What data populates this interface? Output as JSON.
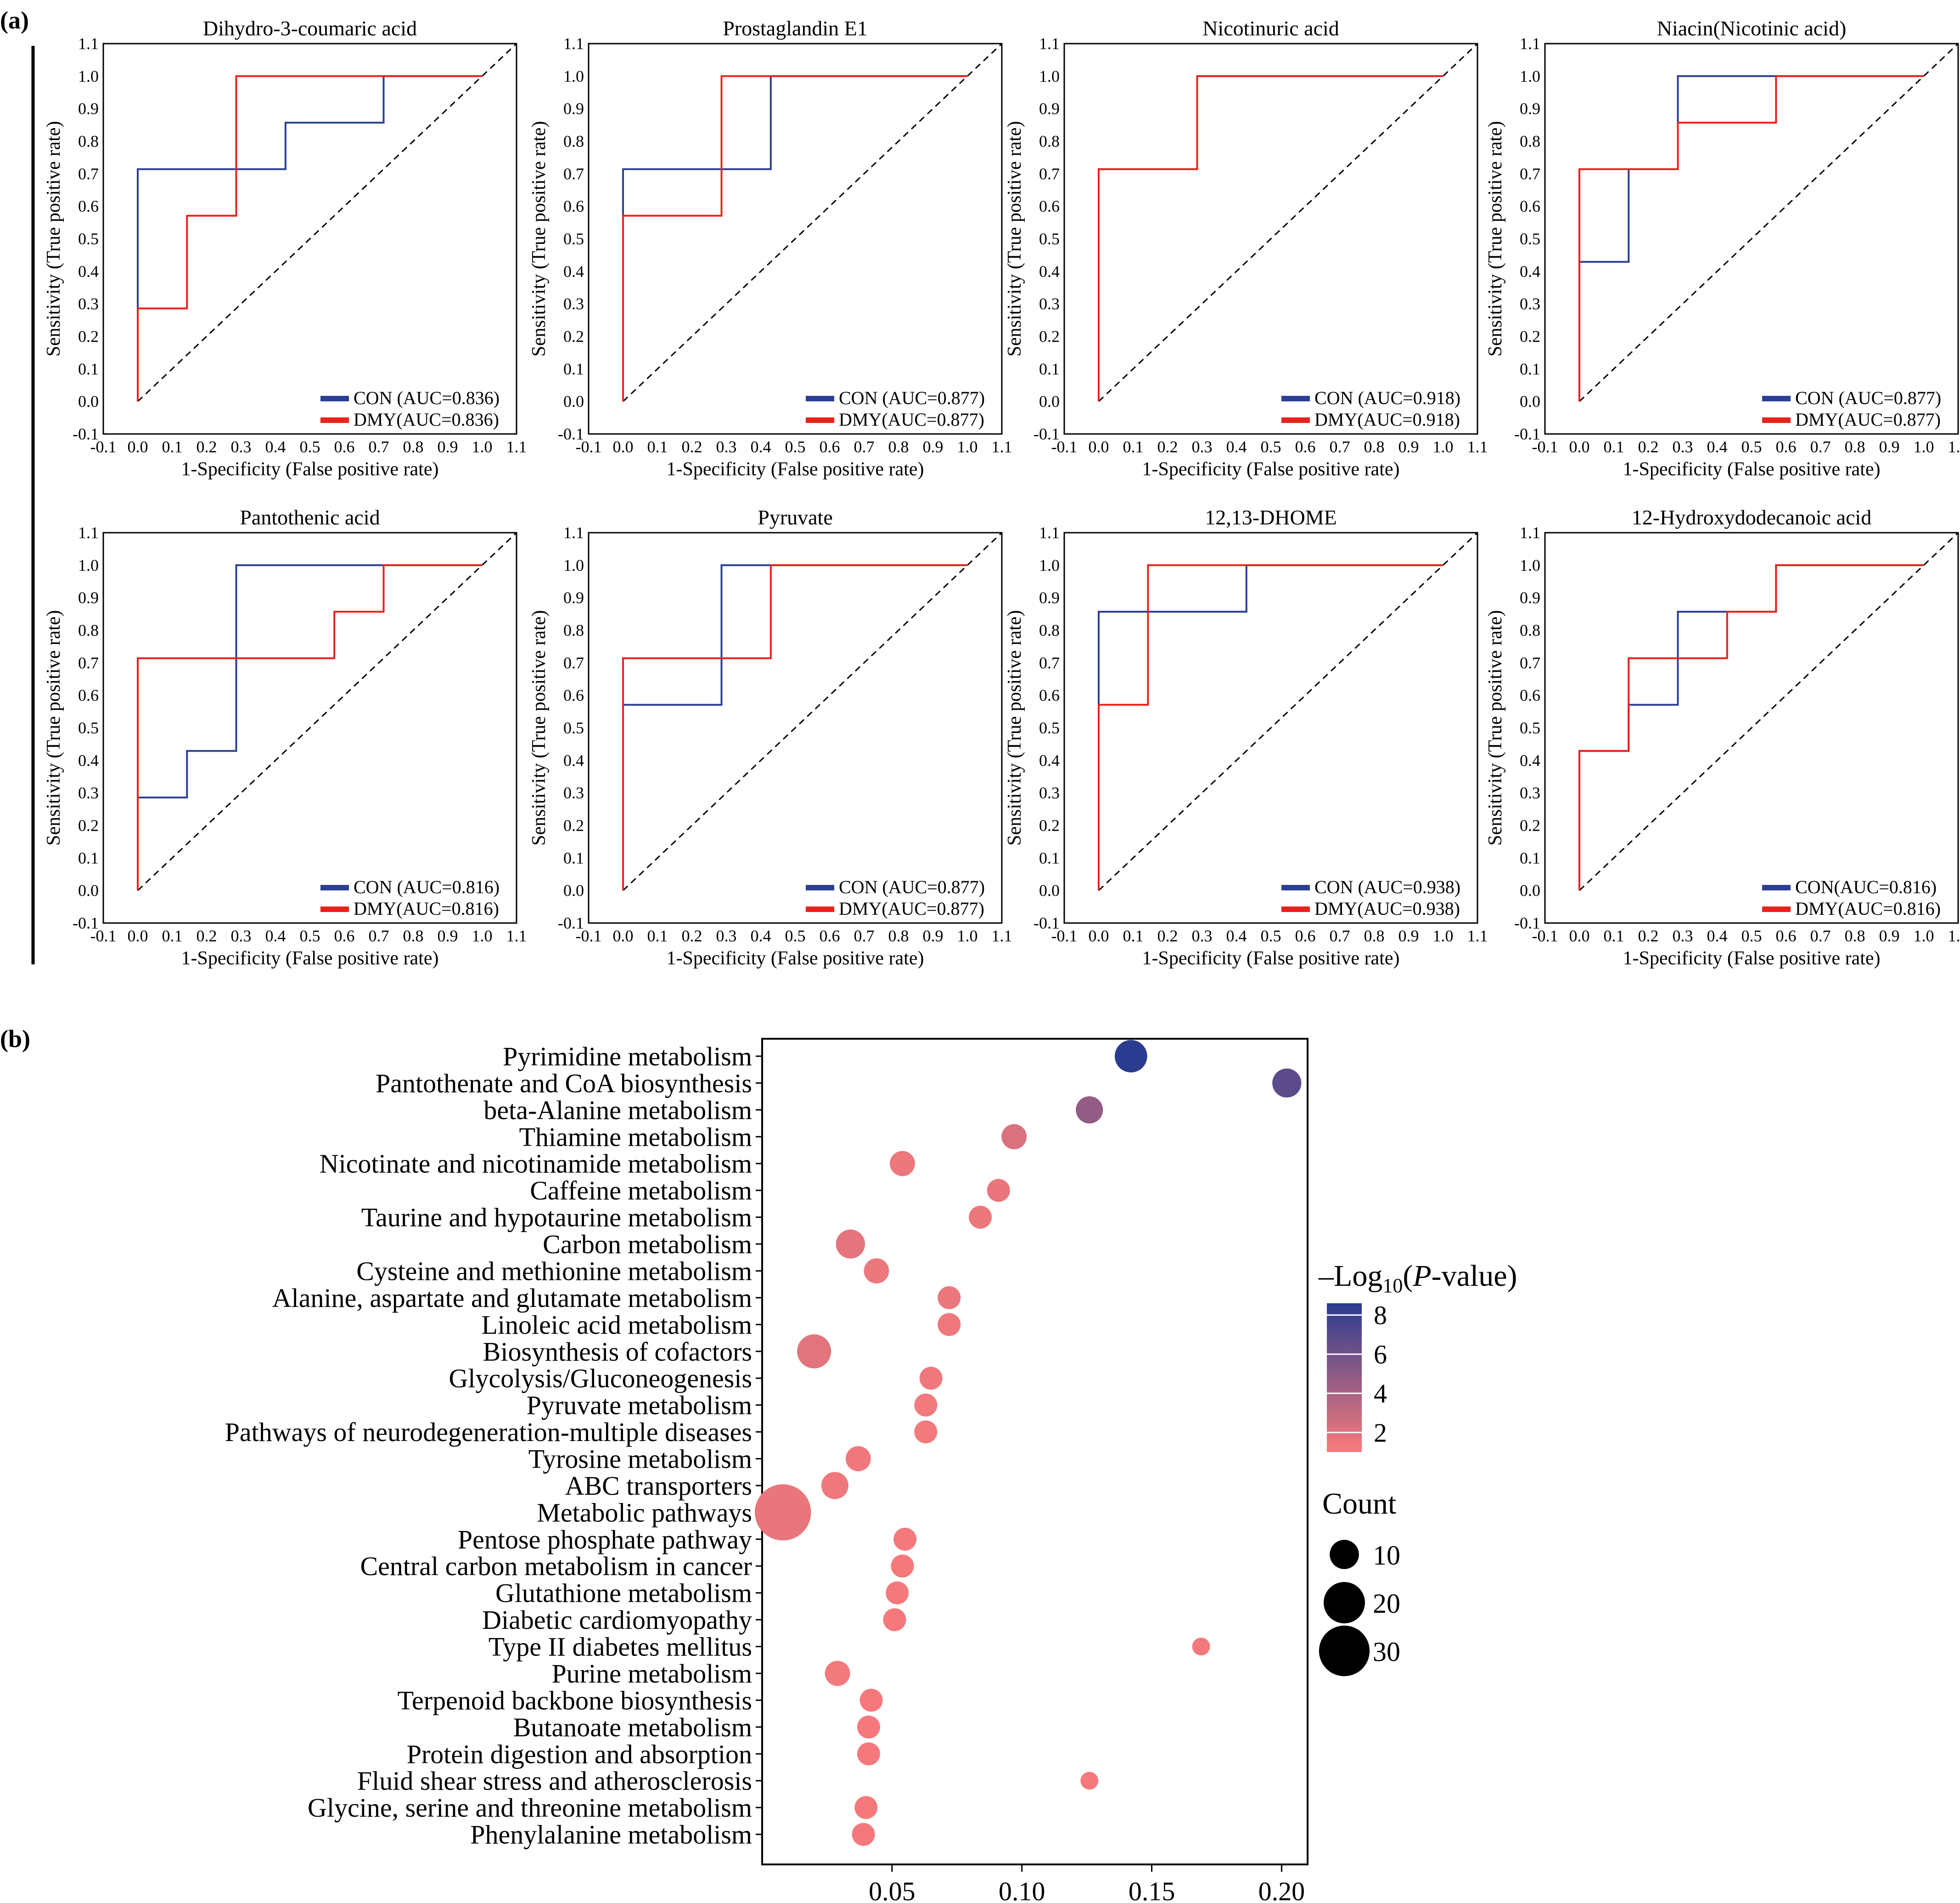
{
  "panel_a_label": "(a)",
  "panel_b_label": "(b)",
  "roc_common": {
    "xlabel": "1-Specificity (False positive rate)",
    "ylabel": "Sensitivity (True positive rate)",
    "ticks": [
      "-0.1",
      "0.0",
      "0.1",
      "0.2",
      "0.3",
      "0.4",
      "0.5",
      "0.6",
      "0.7",
      "0.8",
      "0.9",
      "1.0",
      "1.1"
    ],
    "tick_values": [
      -0.1,
      0.0,
      0.1,
      0.2,
      0.3,
      0.4,
      0.5,
      0.6,
      0.7,
      0.8,
      0.9,
      1.0,
      1.1
    ],
    "xlim": [
      -0.1,
      1.1
    ],
    "ylim": [
      -0.1,
      1.1
    ],
    "con_color": "#2b3f93",
    "dmy_color": "#e8221d"
  },
  "roc_panels": [
    {
      "title": "Dihydro-3-coumaric acid",
      "con_legend": "CON (AUC=0.836)",
      "dmy_legend": "DMY(AUC=0.836)",
      "con": [
        [
          0,
          0
        ],
        [
          0,
          0.714
        ],
        [
          0.429,
          0.714
        ],
        [
          0.429,
          0.857
        ],
        [
          0.714,
          0.857
        ],
        [
          0.714,
          1
        ],
        [
          1,
          1
        ]
      ],
      "dmy": [
        [
          0,
          0
        ],
        [
          0,
          0.286
        ],
        [
          0.143,
          0.286
        ],
        [
          0.143,
          0.571
        ],
        [
          0.286,
          0.571
        ],
        [
          0.286,
          1
        ],
        [
          1,
          1
        ]
      ]
    },
    {
      "title": "Prostaglandin E1",
      "con_legend": "CON (AUC=0.877)",
      "dmy_legend": "DMY(AUC=0.877)",
      "con": [
        [
          0,
          0
        ],
        [
          0,
          0.714
        ],
        [
          0.429,
          0.714
        ],
        [
          0.429,
          1
        ],
        [
          1,
          1
        ]
      ],
      "dmy": [
        [
          0,
          0
        ],
        [
          0,
          0.571
        ],
        [
          0.286,
          0.571
        ],
        [
          0.286,
          1
        ],
        [
          1,
          1
        ]
      ]
    },
    {
      "title": "Nicotinuric acid",
      "con_legend": "CON (AUC=0.918)",
      "dmy_legend": "DMY(AUC=0.918)",
      "con": [
        [
          0,
          0
        ],
        [
          0,
          0.714
        ],
        [
          0.286,
          0.714
        ],
        [
          0.286,
          1
        ],
        [
          1,
          1
        ]
      ],
      "dmy": [
        [
          0,
          0
        ],
        [
          0,
          0.714
        ],
        [
          0.286,
          0.714
        ],
        [
          0.286,
          1
        ],
        [
          1,
          1
        ]
      ]
    },
    {
      "title": "Niacin(Nicotinic acid)",
      "con_legend": "CON (AUC=0.877)",
      "dmy_legend": "DMY(AUC=0.877)",
      "con": [
        [
          0,
          0
        ],
        [
          0,
          0.429
        ],
        [
          0.143,
          0.429
        ],
        [
          0.143,
          0.714
        ],
        [
          0.286,
          0.714
        ],
        [
          0.286,
          1
        ],
        [
          1,
          1
        ]
      ],
      "dmy": [
        [
          0,
          0
        ],
        [
          0,
          0.714
        ],
        [
          0.286,
          0.714
        ],
        [
          0.286,
          0.857
        ],
        [
          0.571,
          0.857
        ],
        [
          0.571,
          1
        ],
        [
          1,
          1
        ]
      ]
    },
    {
      "title": "Pantothenic acid",
      "con_legend": "CON (AUC=0.816)",
      "dmy_legend": "DMY(AUC=0.816)",
      "con": [
        [
          0,
          0
        ],
        [
          0,
          0.286
        ],
        [
          0.143,
          0.286
        ],
        [
          0.143,
          0.429
        ],
        [
          0.286,
          0.429
        ],
        [
          0.286,
          1
        ],
        [
          1,
          1
        ]
      ],
      "dmy": [
        [
          0,
          0
        ],
        [
          0,
          0.714
        ],
        [
          0.571,
          0.714
        ],
        [
          0.571,
          0.857
        ],
        [
          0.714,
          0.857
        ],
        [
          0.714,
          1
        ],
        [
          1,
          1
        ]
      ]
    },
    {
      "title": "Pyruvate",
      "con_legend": "CON (AUC=0.877)",
      "dmy_legend": "DMY(AUC=0.877)",
      "con": [
        [
          0,
          0
        ],
        [
          0,
          0.571
        ],
        [
          0.286,
          0.571
        ],
        [
          0.286,
          1
        ],
        [
          1,
          1
        ]
      ],
      "dmy": [
        [
          0,
          0
        ],
        [
          0,
          0.714
        ],
        [
          0.429,
          0.714
        ],
        [
          0.429,
          1
        ],
        [
          1,
          1
        ]
      ]
    },
    {
      "title": "12,13-DHOME",
      "con_legend": "CON (AUC=0.938)",
      "dmy_legend": "DMY(AUC=0.938)",
      "con": [
        [
          0,
          0
        ],
        [
          0,
          0.857
        ],
        [
          0.429,
          0.857
        ],
        [
          0.429,
          1
        ],
        [
          1,
          1
        ]
      ],
      "dmy": [
        [
          0,
          0
        ],
        [
          0,
          0.571
        ],
        [
          0.143,
          0.571
        ],
        [
          0.143,
          1
        ],
        [
          1,
          1
        ]
      ]
    },
    {
      "title": "12-Hydroxydodecanoic acid",
      "con_legend": "CON(AUC=0.816)",
      "dmy_legend": "DMY(AUC=0.816)",
      "con": [
        [
          0,
          0
        ],
        [
          0,
          0.429
        ],
        [
          0.143,
          0.429
        ],
        [
          0.143,
          0.571
        ],
        [
          0.286,
          0.571
        ],
        [
          0.286,
          0.857
        ],
        [
          0.571,
          0.857
        ],
        [
          0.571,
          1
        ],
        [
          1,
          1
        ]
      ],
      "dmy": [
        [
          0,
          0
        ],
        [
          0,
          0.429
        ],
        [
          0.143,
          0.429
        ],
        [
          0.143,
          0.714
        ],
        [
          0.429,
          0.714
        ],
        [
          0.429,
          0.857
        ],
        [
          0.571,
          0.857
        ],
        [
          0.571,
          1
        ],
        [
          1,
          1
        ]
      ]
    }
  ],
  "chart_data": {
    "type": "scatter",
    "title": "",
    "xlabel": "",
    "ylabel": "",
    "xlim": [
      -0.0,
      0.21
    ],
    "x_ticks": [
      0.05,
      0.1,
      0.15,
      0.2
    ],
    "x_tick_labels": [
      "0.05",
      "0.10",
      "0.15",
      "0.20"
    ],
    "color_legend_title_prefix": "–Log",
    "color_legend_title_sub": "10",
    "color_legend_title_open": "(",
    "color_legend_title_italic": "P",
    "color_legend_title_suffix": "-value)",
    "color_legend_ticks": [
      "8",
      "6",
      "4",
      "2"
    ],
    "color_legend_tick_values": [
      8,
      6,
      4,
      2
    ],
    "color_range": [
      1,
      8.6
    ],
    "color_low": "#fa7b7b",
    "color_high": "#2a3c8f",
    "size_legend_title": "Count",
    "size_legend_labels": [
      "10",
      "20",
      "30"
    ],
    "size_legend_values": [
      10,
      20,
      30
    ],
    "pathways": [
      {
        "name": "Pyrimidine metabolism",
        "x": 0.142,
        "logp": 8.6,
        "count": 10
      },
      {
        "name": "Pantothenate and CoA biosynthesis",
        "x": 0.202,
        "logp": 6.8,
        "count": 8
      },
      {
        "name": "beta-Alanine metabolism",
        "x": 0.126,
        "logp": 4.8,
        "count": 7
      },
      {
        "name": "Thiamine metabolism",
        "x": 0.097,
        "logp": 2.2,
        "count": 6
      },
      {
        "name": "Nicotinate and nicotinamide metabolism",
        "x": 0.054,
        "logp": 1.5,
        "count": 6
      },
      {
        "name": "Caffeine metabolism",
        "x": 0.091,
        "logp": 1.6,
        "count": 5
      },
      {
        "name": "Taurine and hypotaurine metabolism",
        "x": 0.084,
        "logp": 1.5,
        "count": 5
      },
      {
        "name": "Carbon metabolism",
        "x": 0.034,
        "logp": 1.8,
        "count": 8
      },
      {
        "name": "Cysteine and methionine metabolism",
        "x": 0.044,
        "logp": 1.5,
        "count": 6
      },
      {
        "name": "Alanine, aspartate and glutamate metabolism",
        "x": 0.072,
        "logp": 1.5,
        "count": 5
      },
      {
        "name": "Linoleic acid metabolism",
        "x": 0.072,
        "logp": 1.4,
        "count": 5
      },
      {
        "name": "Biosynthesis of cofactors",
        "x": 0.02,
        "logp": 1.9,
        "count": 11
      },
      {
        "name": "Glycolysis/Gluconeogenesis",
        "x": 0.065,
        "logp": 1.4,
        "count": 5
      },
      {
        "name": "Pyruvate metabolism",
        "x": 0.063,
        "logp": 1.3,
        "count": 5
      },
      {
        "name": "Pathways of neurodegeneration-multiple diseases",
        "x": 0.063,
        "logp": 1.3,
        "count": 5
      },
      {
        "name": "Tyrosine metabolism",
        "x": 0.037,
        "logp": 1.4,
        "count": 6
      },
      {
        "name": "ABC transporters",
        "x": 0.028,
        "logp": 1.4,
        "count": 7
      },
      {
        "name": "Metabolic pathways",
        "x": 0.008,
        "logp": 1.6,
        "count": 30
      },
      {
        "name": "Pentose phosphate pathway",
        "x": 0.055,
        "logp": 1.2,
        "count": 5
      },
      {
        "name": "Central carbon metabolism in cancer",
        "x": 0.054,
        "logp": 1.2,
        "count": 5
      },
      {
        "name": "Glutathione metabolism",
        "x": 0.052,
        "logp": 1.2,
        "count": 5
      },
      {
        "name": "Diabetic cardiomyopathy",
        "x": 0.051,
        "logp": 1.2,
        "count": 5
      },
      {
        "name": "Type II diabetes mellitus",
        "x": 0.169,
        "logp": 1.3,
        "count": 3
      },
      {
        "name": "Purine metabolism",
        "x": 0.029,
        "logp": 1.3,
        "count": 6
      },
      {
        "name": "Terpenoid backbone biosynthesis",
        "x": 0.042,
        "logp": 1.2,
        "count": 5
      },
      {
        "name": "Butanoate metabolism",
        "x": 0.041,
        "logp": 1.2,
        "count": 5
      },
      {
        "name": "Protein digestion and absorption",
        "x": 0.041,
        "logp": 1.2,
        "count": 5
      },
      {
        "name": "Fluid shear stress and atherosclerosis",
        "x": 0.126,
        "logp": 1.2,
        "count": 3
      },
      {
        "name": "Glycine, serine and threonine metabolism",
        "x": 0.04,
        "logp": 1.2,
        "count": 5
      },
      {
        "name": "Phenylalanine metabolism",
        "x": 0.039,
        "logp": 1.2,
        "count": 5
      }
    ]
  }
}
